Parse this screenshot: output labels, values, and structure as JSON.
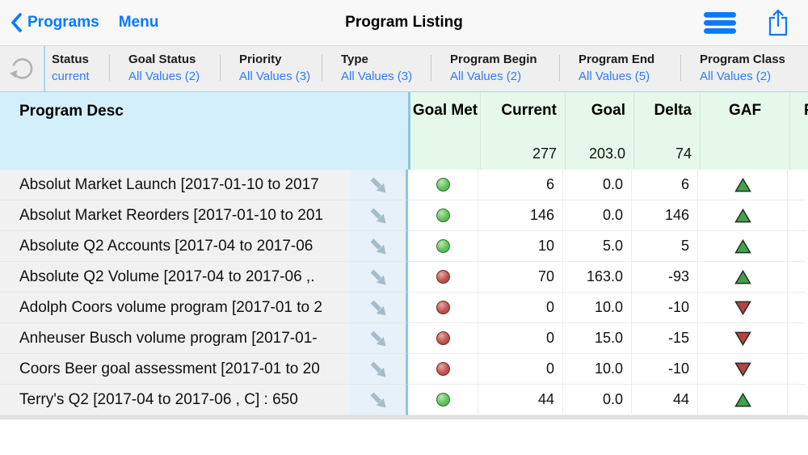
{
  "nav": {
    "back_label": "Programs",
    "menu_label": "Menu",
    "title": "Program Listing"
  },
  "icons": {
    "back": "chevron-left",
    "menu_toggle": "hamburger",
    "share": "share-box-up-arrow",
    "refresh": "circular-arrow",
    "drilldown": "arrow-down-right",
    "goal_met_true": "green-glossy-dot",
    "goal_met_false": "red-glossy-dot",
    "gaf_up": "green-up-triangle",
    "gaf_down": "red-down-triangle"
  },
  "colors": {
    "accent_blue": "#007aff",
    "filter_value_blue": "#2e7cf5",
    "frozen_header_bg": "#d3effa",
    "metric_header_bg": "#e5f8e9",
    "frozen_row_bg": "#f1f1f2",
    "arrow_cell_bg": "#e6f1f9",
    "column_divider_blue": "#8dc6e2",
    "dot_green": "#49a84c",
    "dot_red": "#a54340",
    "triangle_green": "#3ea44b",
    "triangle_red": "#b5443f"
  },
  "filters": [
    {
      "label": "Status",
      "value": "current"
    },
    {
      "label": "Goal Status",
      "value": "All Values (2)"
    },
    {
      "label": "Priority",
      "value": "All Values (3)"
    },
    {
      "label": "Type",
      "value": "All Values (3)"
    },
    {
      "label": "Program Begin",
      "value": "All Values (2)"
    },
    {
      "label": "Program End",
      "value": "All Values (5)"
    },
    {
      "label": "Program Class",
      "value": "All Values (2)"
    }
  ],
  "table": {
    "frozen_header": "Program Desc",
    "columns": [
      "Goal Met",
      "Current",
      "Goal",
      "Delta",
      "GAF"
    ],
    "summary": {
      "current": "277",
      "goal": "203.0",
      "delta": "74"
    },
    "partial_next_column": "P",
    "rows": [
      {
        "desc": "Absolut Market Launch [2017-01-10 to 2017",
        "goal_met": "green",
        "current": "6",
        "goal": "0.0",
        "delta": "6",
        "gaf": "up"
      },
      {
        "desc": "Absolut Market Reorders [2017-01-10 to 201",
        "goal_met": "green",
        "current": "146",
        "goal": "0.0",
        "delta": "146",
        "gaf": "up"
      },
      {
        "desc": "Absolute Q2 Accounts [2017-04 to 2017-06",
        "goal_met": "green",
        "current": "10",
        "goal": "5.0",
        "delta": "5",
        "gaf": "up"
      },
      {
        "desc": "Absolute Q2 Volume [2017-04 to 2017-06 ,.",
        "goal_met": "red",
        "current": "70",
        "goal": "163.0",
        "delta": "-93",
        "gaf": "up"
      },
      {
        "desc": "Adolph Coors volume program [2017-01 to 2",
        "goal_met": "red",
        "current": "0",
        "goal": "10.0",
        "delta": "-10",
        "gaf": "down"
      },
      {
        "desc": "Anheuser Busch volume program [2017-01-",
        "goal_met": "red",
        "current": "0",
        "goal": "15.0",
        "delta": "-15",
        "gaf": "down"
      },
      {
        "desc": "Coors Beer goal assessment [2017-01 to 20",
        "goal_met": "red",
        "current": "0",
        "goal": "10.0",
        "delta": "-10",
        "gaf": "down"
      },
      {
        "desc": "Terry's Q2 [2017-04 to 2017-06 , C] : 650",
        "goal_met": "green",
        "current": "44",
        "goal": "0.0",
        "delta": "44",
        "gaf": "up"
      }
    ]
  }
}
